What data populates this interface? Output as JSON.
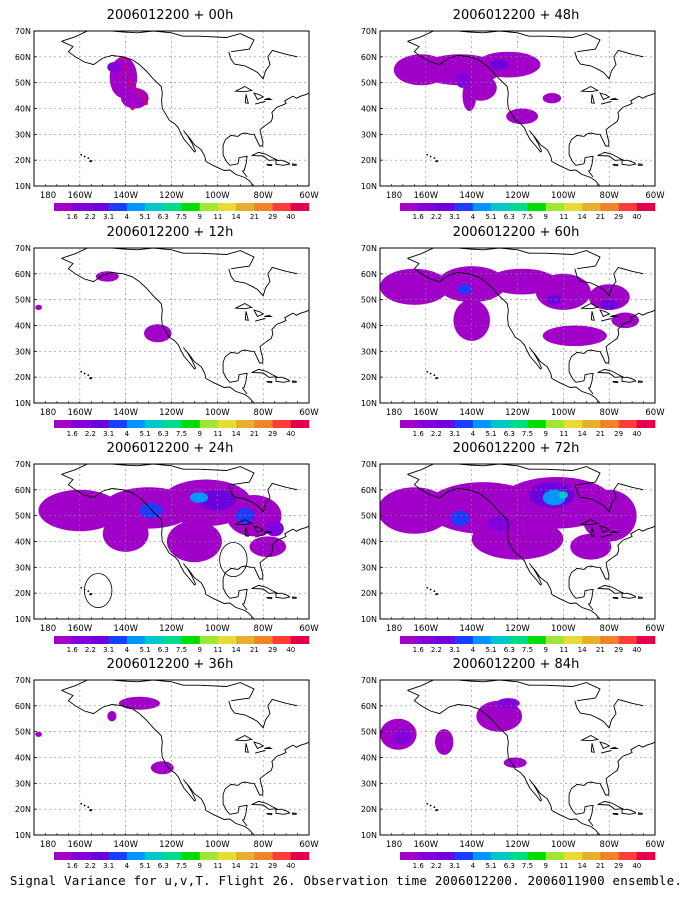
{
  "panels": [
    {
      "title": "2006012200 + 00h"
    },
    {
      "title": "2006012200 + 48h"
    },
    {
      "title": "2006012200 + 12h"
    },
    {
      "title": "2006012200 + 60h"
    },
    {
      "title": "2006012200 + 24h"
    },
    {
      "title": "2006012200 + 72h"
    },
    {
      "title": "2006012200 + 36h"
    },
    {
      "title": "2006012200 + 84h"
    }
  ],
  "lat_labels": [
    "70N",
    "60N",
    "50N",
    "40N",
    "30N",
    "20N",
    "10N"
  ],
  "lon_labels": [
    "180",
    "160W",
    "140W",
    "120W",
    "100W",
    "80W",
    "60W"
  ],
  "colorbar": {
    "levels": [
      "1.6",
      "2.2",
      "3.1",
      "4",
      "5.1",
      "6.3",
      "7.5",
      "9",
      "11",
      "14",
      "21",
      "29",
      "40"
    ],
    "colors": [
      "#a000c8",
      "#8200dc",
      "#6e00dc",
      "#1e3cff",
      "#0096ff",
      "#00c8c8",
      "#00dc8c",
      "#00dc00",
      "#a0e632",
      "#e6dc32",
      "#e6af2d",
      "#f08228",
      "#fa3c3c",
      "#e6004b"
    ]
  },
  "caption": "Signal Variance for u,v,T. Flight 26. Observation time 2006012200. 2006011900 ensemble."
}
